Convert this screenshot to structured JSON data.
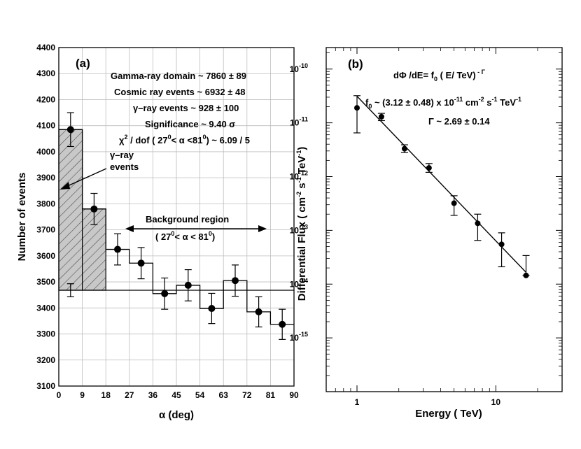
{
  "chart_data": [
    {
      "id": "a",
      "type": "histogram",
      "panel_label": "(a)",
      "xlabel": "α  (deg)",
      "ylabel": "Number of  events",
      "xlim": [
        0,
        90
      ],
      "ylim": [
        3100,
        4400
      ],
      "xticks": [
        0,
        9,
        18,
        27,
        36,
        45,
        54,
        63,
        72,
        81,
        90
      ],
      "yticks": [
        3100,
        3200,
        3300,
        3400,
        3500,
        3600,
        3700,
        3800,
        3900,
        4000,
        4100,
        4200,
        4300,
        4400
      ],
      "bin_width": 9,
      "bins": [
        {
          "x": 4.5,
          "y": 4085,
          "err": 65
        },
        {
          "x": 13.5,
          "y": 3780,
          "err": 60
        },
        {
          "x": 22.5,
          "y": 3625,
          "err": 60
        },
        {
          "x": 31.5,
          "y": 3572,
          "err": 60
        },
        {
          "x": 40.5,
          "y": 3455,
          "err": 60
        },
        {
          "x": 49.5,
          "y": 3487,
          "err": 60
        },
        {
          "x": 58.5,
          "y": 3398,
          "err": 58
        },
        {
          "x": 67.5,
          "y": 3505,
          "err": 60
        },
        {
          "x": 76.5,
          "y": 3385,
          "err": 58
        },
        {
          "x": 85.5,
          "y": 3337,
          "err": 58
        }
      ],
      "background_level": 3468,
      "background_point": {
        "x": 4.5,
        "y": 3468,
        "err": 25
      },
      "shaded_bins": [
        0,
        1
      ],
      "annotations": {
        "gamma_domain_label": "Gamma-ray domain  ~  7860",
        "gamma_domain_err": "89",
        "cosmic_label": "Cosmic ray events  ~  6932",
        "cosmic_err": "48",
        "gamma_events_label": "γ–ray  events   ~  928",
        "gamma_events_err": "100",
        "significance": "Significance    ~  9.40   σ",
        "chi2_prefix": "χ",
        "chi2_exp": "2",
        "chi2_mid": " / dof  (  27",
        "chi2_deg1": "0",
        "chi2_mid2": "< α   <81",
        "chi2_deg2": "0",
        "chi2_end": ")  ~  6.09 / 5",
        "gamma_events_arrow_line1": "γ–ray",
        "gamma_events_arrow_line2": "events",
        "background_region": "Background  region",
        "bg_range_a": "( 27",
        "bg_range_deg1": "0",
        "bg_range_b": "< α  < 81",
        "bg_range_deg2": "0",
        "bg_range_c": ")"
      }
    },
    {
      "id": "b",
      "type": "scatter_loglog",
      "panel_label": "(b)",
      "xlabel": "Energy  ( TeV)",
      "ylabel": "Differential  Flux ( cm",
      "ylabel_exp1": "-2",
      "ylabel_mid": " s",
      "ylabel_exp2": "-1",
      "ylabel_mid2": " TeV",
      "ylabel_exp3": "-1",
      "ylabel_end": ")",
      "xlim": [
        0.6,
        30
      ],
      "ylim_exp": [
        -16,
        -9.6
      ],
      "xtick_labels": [
        "1",
        "10"
      ],
      "ytick_exps": [
        "-10",
        "-11",
        "-12",
        "-13",
        "-14",
        "-15"
      ],
      "points": [
        {
          "x": 1.0,
          "y": 1.9e-11,
          "ylo": 6.5e-12,
          "yhi": 3.2e-11
        },
        {
          "x": 1.5,
          "y": 1.3e-11,
          "ylo": 1.1e-11,
          "yhi": 1.5e-11
        },
        {
          "x": 2.2,
          "y": 3.3e-12,
          "ylo": 2.8e-12,
          "yhi": 3.9e-12
        },
        {
          "x": 3.3,
          "y": 1.45e-12,
          "ylo": 1.2e-12,
          "yhi": 1.75e-12
        },
        {
          "x": 5.0,
          "y": 3.2e-13,
          "ylo": 1.9e-13,
          "yhi": 4.4e-13
        },
        {
          "x": 7.4,
          "y": 1.35e-13,
          "ylo": 6.5e-14,
          "yhi": 2e-13
        },
        {
          "x": 11.0,
          "y": 5.5e-14,
          "ylo": 2.1e-14,
          "yhi": 9e-14
        },
        {
          "x": 16.5,
          "y": 1.45e-14,
          "ylo": 1.45e-14,
          "yhi": 3.4e-14
        }
      ],
      "fit": {
        "f0": 3.12e-11,
        "gamma": 2.69,
        "x_range": [
          1.0,
          16.5
        ]
      },
      "annotations": {
        "formula_a": "dΦ /dE= f",
        "formula_sub": "0",
        "formula_b": " (  E/ TeV)",
        "formula_exp": " - Γ",
        "f0_a": "f",
        "f0_sub": "0",
        "f0_b": " ~ (3.12 ± 0.48) x 10",
        "f0_exp": "-11",
        "f0_c": "  cm",
        "f0_exp2": "-2",
        "f0_d": " s",
        "f0_exp3": "-1",
        "f0_e": " TeV",
        "f0_exp4": "-1",
        "gamma_text": "Γ ~  2.69  ±  0.14"
      }
    }
  ]
}
